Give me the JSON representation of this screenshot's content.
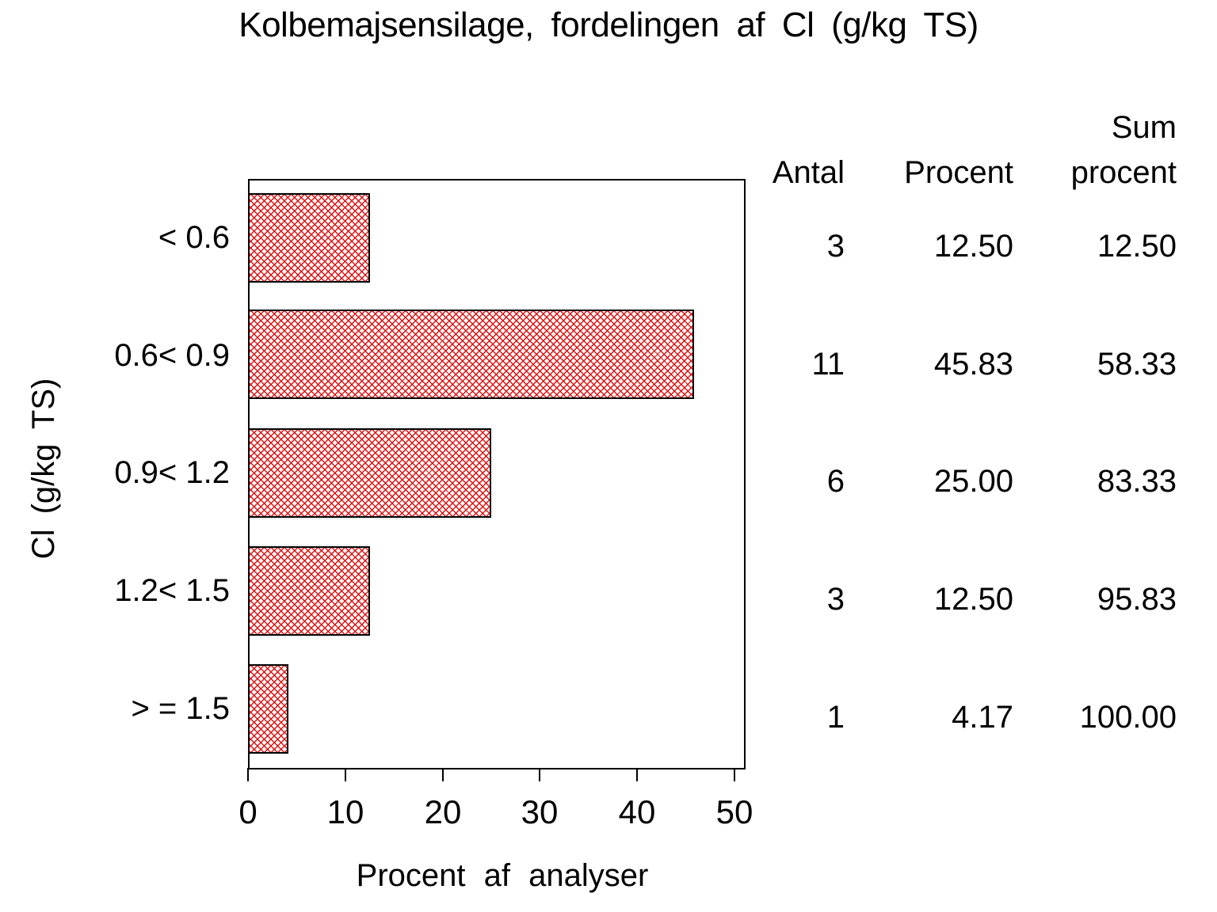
{
  "title": "Kolbemajsensilage, fordelingen af Cl (g/kg TS)",
  "chart_data": {
    "type": "bar",
    "orientation": "horizontal",
    "title": "Kolbemajsensilage, fordelingen af Cl (g/kg TS)",
    "categories": [
      "< 0.6",
      "0.6< 0.9",
      "0.9< 1.2",
      "1.2< 1.5",
      "> = 1.5"
    ],
    "values": [
      12.5,
      45.83,
      25.0,
      12.5,
      4.17
    ],
    "counts": [
      3,
      11,
      6,
      3,
      1
    ],
    "cum_percent": [
      12.5,
      58.33,
      83.33,
      95.83,
      100.0
    ],
    "xlabel": "Procent af analyser",
    "ylabel": "Cl (g/kg TS)",
    "xlim": [
      0,
      50
    ],
    "xticks": [
      "0",
      "10",
      "20",
      "30",
      "40",
      "50"
    ],
    "grid": false,
    "bar_style": "red diagonal crosshatch with black outline",
    "colors": {
      "hatch": "#e01010",
      "frame": "#000000",
      "text": "#000000",
      "background": "#ffffff"
    }
  },
  "table": {
    "headers": {
      "antal": "Antal",
      "procent": "Procent",
      "sum_line1": "Sum",
      "sum_line2": "procent"
    },
    "rows": [
      {
        "antal": "3",
        "procent": "12.50",
        "sum": "12.50"
      },
      {
        "antal": "11",
        "procent": "45.83",
        "sum": "58.33"
      },
      {
        "antal": "6",
        "procent": "25.00",
        "sum": "83.33"
      },
      {
        "antal": "3",
        "procent": "12.50",
        "sum": "95.83"
      },
      {
        "antal": "1",
        "procent": "4.17",
        "sum": "100.00"
      }
    ]
  }
}
